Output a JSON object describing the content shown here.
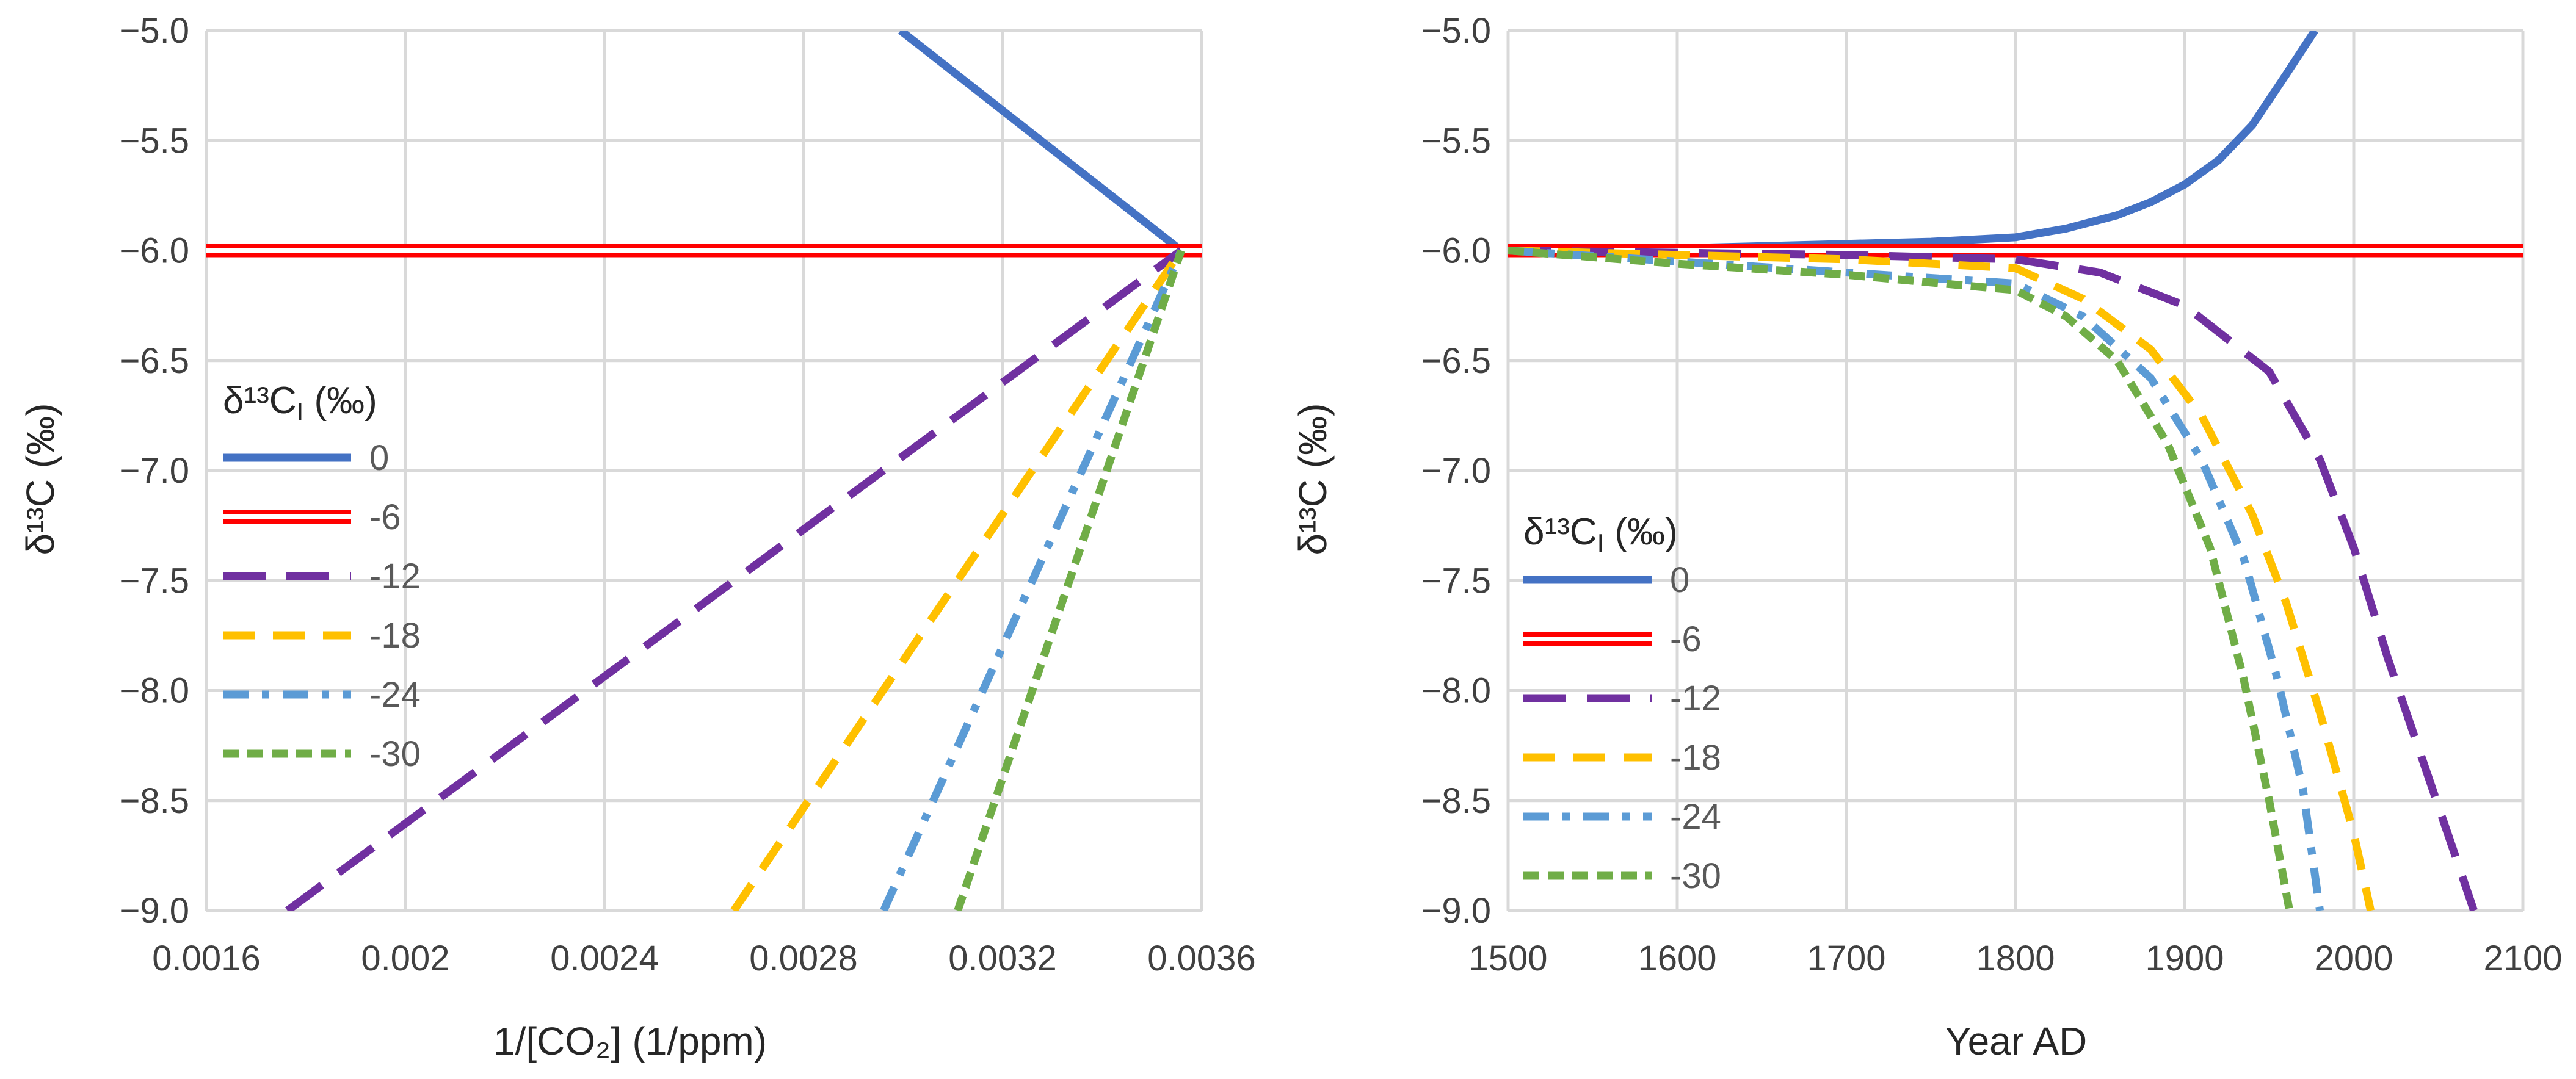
{
  "chart_data": [
    {
      "type": "line",
      "xlabel": "1/[CO₂] (1/ppm)",
      "ylabel": "δ¹³C (‰)",
      "xlim": [
        0.0016,
        0.0036
      ],
      "ylim": [
        -9.0,
        -5.0
      ],
      "x_ticks": [
        "0.0016",
        "0.002",
        "0.0024",
        "0.0028",
        "0.0032",
        "0.0036"
      ],
      "y_ticks": [
        "−5.0",
        "−5.5",
        "−6.0",
        "−6.5",
        "−7.0",
        "−7.5",
        "−8.0",
        "−8.5",
        "−9.0"
      ],
      "legend": {
        "title_main": "δ¹³C",
        "title_sub": "I",
        "title_unit": " (‰)",
        "position": "left"
      },
      "series": [
        {
          "name": "0",
          "color": "#4472c4",
          "style": "solid",
          "points": [
            [
              0.002995,
              -5.0
            ],
            [
              0.003559,
              -6.0
            ]
          ]
        },
        {
          "name": "-6",
          "color": "#ff0000",
          "style": "double",
          "points": [
            [
              0.0016,
              -6.0
            ],
            [
              0.0036,
              -6.0
            ]
          ]
        },
        {
          "name": "-12",
          "color": "#7030a0",
          "style": "long-dash",
          "points": [
            [
              0.001763,
              -9.0
            ],
            [
              0.003559,
              -6.0
            ]
          ]
        },
        {
          "name": "-18",
          "color": "#ffc000",
          "style": "dash",
          "points": [
            [
              0.00266,
              -9.0
            ],
            [
              0.003559,
              -6.0
            ]
          ]
        },
        {
          "name": "-24",
          "color": "#5b9bd5",
          "style": "dash-dot",
          "points": [
            [
              0.002961,
              -9.0
            ],
            [
              0.003559,
              -6.0
            ]
          ]
        },
        {
          "name": "-30",
          "color": "#70ad47",
          "style": "short-dash",
          "points": [
            [
              0.00311,
              -9.0
            ],
            [
              0.003559,
              -6.0
            ]
          ]
        }
      ]
    },
    {
      "type": "line",
      "xlabel": "Year AD",
      "ylabel": "δ¹³C (‰)",
      "xlim": [
        1500,
        2100
      ],
      "ylim": [
        -9.0,
        -5.0
      ],
      "x_ticks": [
        "1500",
        "1600",
        "1700",
        "1800",
        "1900",
        "2000",
        "2100"
      ],
      "y_ticks": [
        "−5.0",
        "−5.5",
        "−6.0",
        "−6.5",
        "−7.0",
        "−7.5",
        "−8.0",
        "−8.5",
        "−9.0"
      ],
      "legend": {
        "title_main": "δ¹³C",
        "title_sub": "I",
        "title_unit": " (‰)",
        "position": "lower-left"
      },
      "series": [
        {
          "name": "0",
          "color": "#4472c4",
          "style": "solid",
          "points": [
            [
              1500,
              -6.0
            ],
            [
              1600,
              -5.99
            ],
            [
              1700,
              -5.97
            ],
            [
              1750,
              -5.96
            ],
            [
              1800,
              -5.94
            ],
            [
              1830,
              -5.9
            ],
            [
              1860,
              -5.84
            ],
            [
              1880,
              -5.78
            ],
            [
              1900,
              -5.7
            ],
            [
              1920,
              -5.59
            ],
            [
              1940,
              -5.43
            ],
            [
              1960,
              -5.2
            ],
            [
              1977,
              -5.0
            ]
          ]
        },
        {
          "name": "-6",
          "color": "#ff0000",
          "style": "double",
          "points": [
            [
              1500,
              -6.0
            ],
            [
              2100,
              -6.0
            ]
          ]
        },
        {
          "name": "-12",
          "color": "#7030a0",
          "style": "long-dash",
          "points": [
            [
              1500,
              -6.0
            ],
            [
              1600,
              -6.01
            ],
            [
              1700,
              -6.02
            ],
            [
              1800,
              -6.04
            ],
            [
              1850,
              -6.1
            ],
            [
              1900,
              -6.25
            ],
            [
              1950,
              -6.55
            ],
            [
              1980,
              -6.95
            ],
            [
              2000,
              -7.35
            ],
            [
              2020,
              -7.85
            ],
            [
              2040,
              -8.3
            ],
            [
              2060,
              -8.75
            ],
            [
              2071,
              -9.0
            ]
          ]
        },
        {
          "name": "-18",
          "color": "#ffc000",
          "style": "dash",
          "points": [
            [
              1500,
              -6.0
            ],
            [
              1600,
              -6.02
            ],
            [
              1700,
              -6.04
            ],
            [
              1800,
              -6.08
            ],
            [
              1840,
              -6.22
            ],
            [
              1880,
              -6.45
            ],
            [
              1910,
              -6.75
            ],
            [
              1940,
              -7.2
            ],
            [
              1960,
              -7.6
            ],
            [
              1980,
              -8.1
            ],
            [
              2000,
              -8.65
            ],
            [
              2010,
              -9.0
            ]
          ]
        },
        {
          "name": "-24",
          "color": "#5b9bd5",
          "style": "dash-dot",
          "points": [
            [
              1500,
              -6.0
            ],
            [
              1600,
              -6.05
            ],
            [
              1700,
              -6.1
            ],
            [
              1800,
              -6.15
            ],
            [
              1840,
              -6.3
            ],
            [
              1880,
              -6.58
            ],
            [
              1910,
              -6.95
            ],
            [
              1935,
              -7.4
            ],
            [
              1955,
              -7.95
            ],
            [
              1970,
              -8.45
            ],
            [
              1980,
              -9.0
            ]
          ]
        },
        {
          "name": "-30",
          "color": "#70ad47",
          "style": "short-dash",
          "points": [
            [
              1500,
              -6.0
            ],
            [
              1600,
              -6.06
            ],
            [
              1700,
              -6.11
            ],
            [
              1800,
              -6.18
            ],
            [
              1830,
              -6.3
            ],
            [
              1860,
              -6.5
            ],
            [
              1890,
              -6.88
            ],
            [
              1915,
              -7.35
            ],
            [
              1935,
              -7.95
            ],
            [
              1950,
              -8.5
            ],
            [
              1962,
              -9.0
            ]
          ]
        }
      ]
    }
  ]
}
